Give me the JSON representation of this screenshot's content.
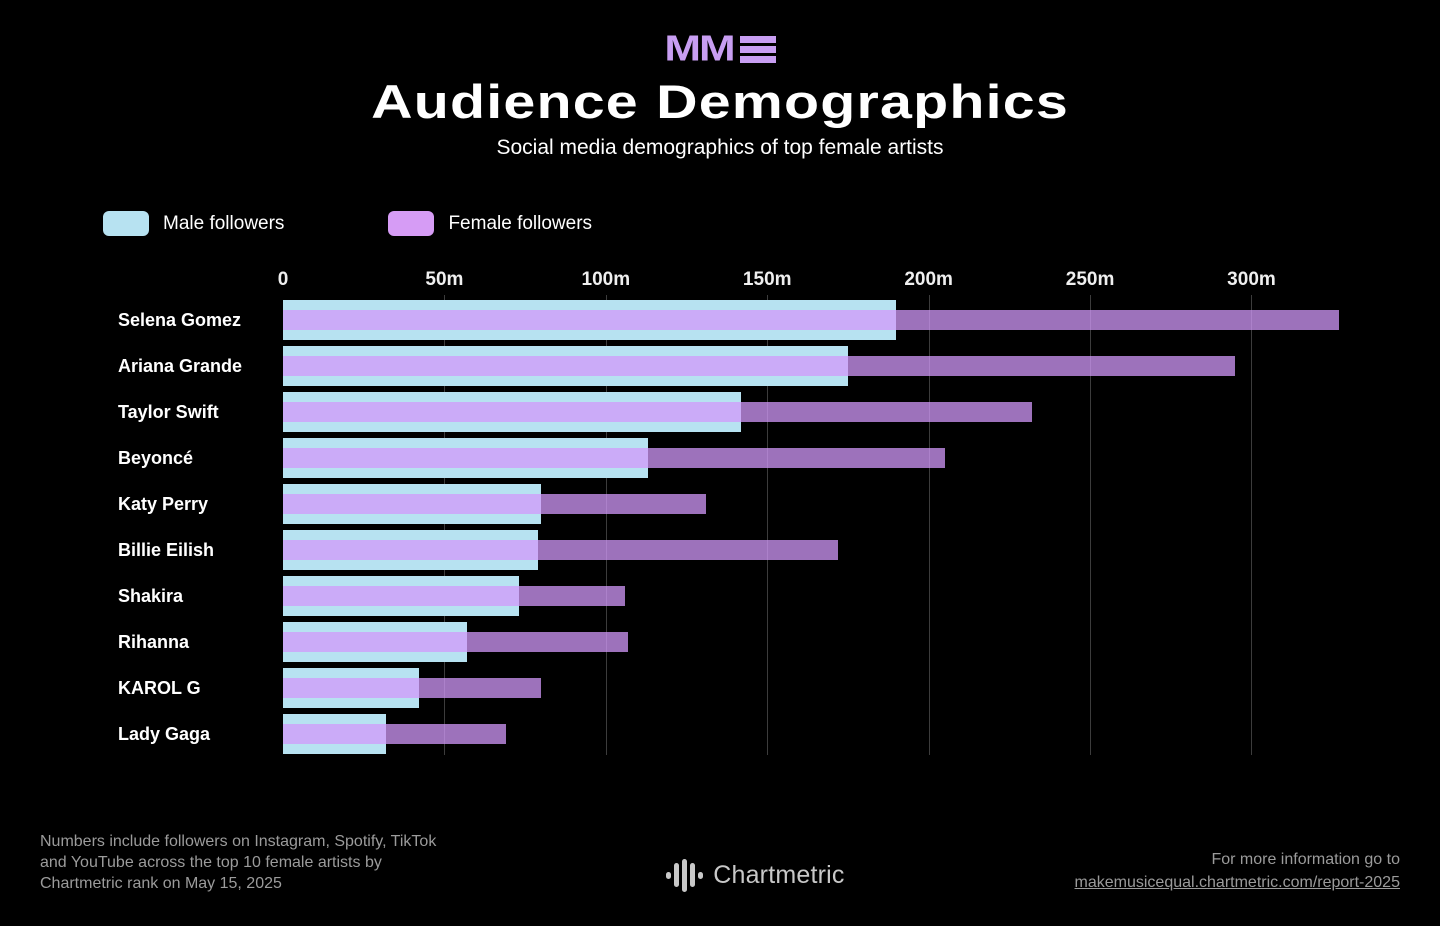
{
  "colors": {
    "background": "#000000",
    "logo_purple": "#c89ef2",
    "male_bar": "#b7e2f1",
    "female_bar_legend": "#d69cf5",
    "female_bar_overlay": "rgba(210,152,250,0.75)",
    "gridline": "#3c3c3c",
    "footer_text": "#9b9b9b",
    "brand_text": "#c8c8c8"
  },
  "header": {
    "logo_text": "MM",
    "title": "Audience Demographics",
    "subtitle": "Social media demographics of top female artists"
  },
  "legend": {
    "items": [
      {
        "label": "Male followers",
        "color": "#b7e2f1"
      },
      {
        "label": "Female followers",
        "color": "#d69cf5"
      }
    ]
  },
  "chart_data": {
    "type": "bar",
    "orientation": "horizontal",
    "title": "Audience Demographics",
    "subtitle": "Social media demographics of top female artists",
    "unit": "followers (millions)",
    "categories": [
      "Selena Gomez",
      "Ariana Grande",
      "Taylor Swift",
      "Beyoncé",
      "Katy Perry",
      "Billie Eilish",
      "Shakira",
      "Rihanna",
      "KAROL G",
      "Lady Gaga"
    ],
    "series": [
      {
        "name": "Male followers",
        "values": [
          190,
          175,
          142,
          113,
          80,
          79,
          73,
          57,
          42,
          32
        ]
      },
      {
        "name": "Female followers",
        "values": [
          327,
          295,
          232,
          205,
          131,
          172,
          106,
          107,
          80,
          69
        ]
      }
    ],
    "x_ticks": [
      {
        "value": 0,
        "label": "0"
      },
      {
        "value": 50,
        "label": "50m"
      },
      {
        "value": 100,
        "label": "100m"
      },
      {
        "value": 150,
        "label": "150m"
      },
      {
        "value": 200,
        "label": "200m"
      },
      {
        "value": 250,
        "label": "250m"
      },
      {
        "value": 300,
        "label": "300m"
      }
    ],
    "xlim": [
      0,
      346
    ],
    "grid": true,
    "legend_position": "top-left",
    "note": "Both series start at zero and overlap; female bar drawn semi-transparent over male bar"
  },
  "footer": {
    "note_lines": [
      "Numbers include followers on Instagram, Spotify, TikTok",
      "and YouTube across the top 10 female artists by",
      "Chartmetric rank on May 15, 2025"
    ],
    "brand": "Chartmetric",
    "info_line1": "For more information go to",
    "info_link": "makemusicequal.chartmetric.com/report-2025"
  }
}
